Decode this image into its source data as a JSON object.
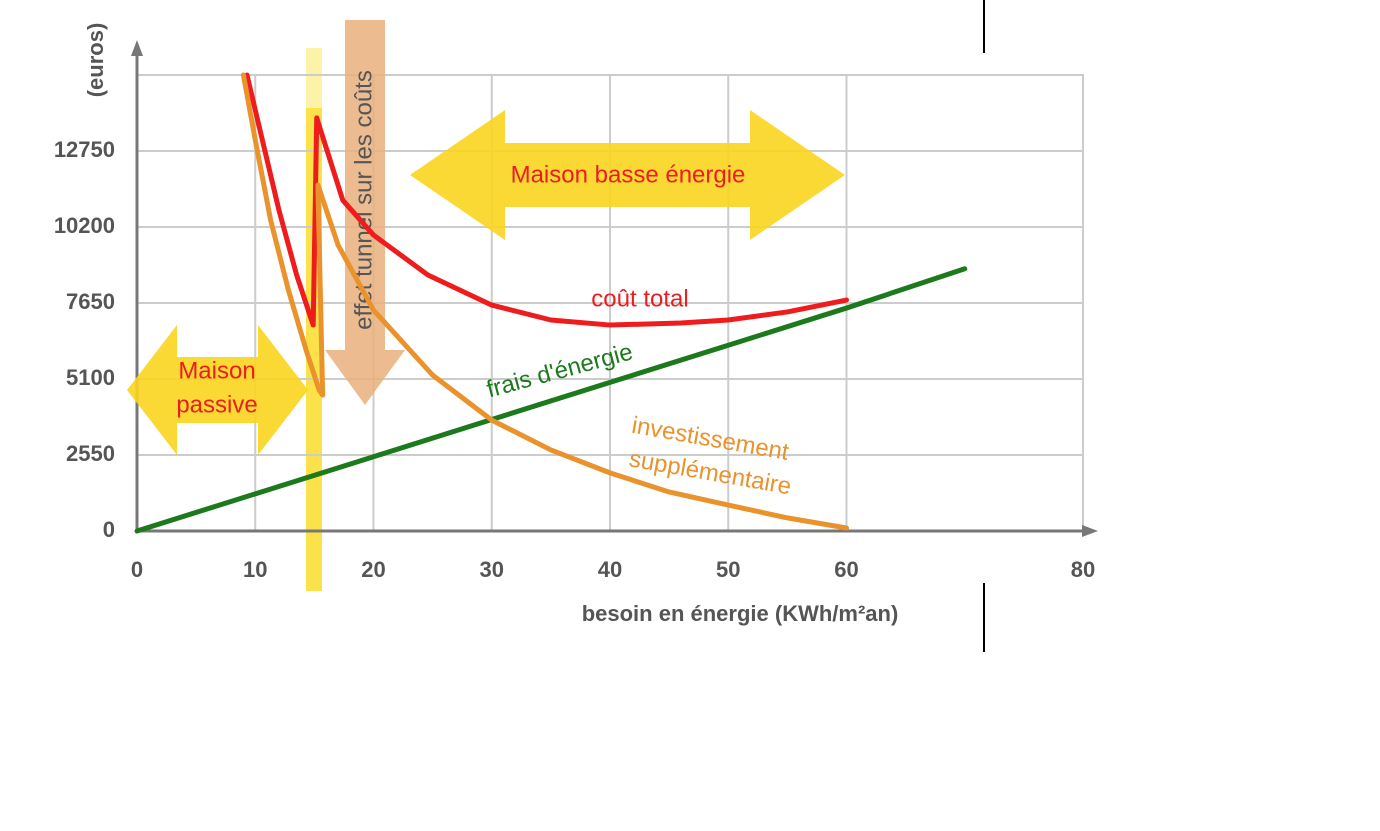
{
  "chart_data": {
    "type": "line",
    "y_label": "(euros)",
    "x_label": "besoin en énergie (KWh/m²an)",
    "xlim": [
      0,
      80
    ],
    "xticks": [
      0,
      10,
      20,
      30,
      40,
      50,
      60,
      80
    ],
    "ylim": [
      0,
      15300
    ],
    "yticks": [
      0,
      2550,
      5100,
      7650,
      10200,
      12750
    ],
    "grid": true,
    "annotations": {
      "passive": [
        "Maison",
        "passive"
      ],
      "low_energy": "Maison basse énergie",
      "tunnel": "effet tunnel sur les coûts"
    },
    "series": [
      {
        "name": "coût total",
        "color": "#ee1c1c",
        "x": [
          9.3,
          12,
          13.5,
          14.9,
          15.2,
          17.4,
          20,
          24.6,
          30,
          35,
          40,
          46,
          50,
          55,
          60
        ],
        "values": [
          15300,
          10770,
          8590,
          6910,
          13860,
          11100,
          9930,
          8590,
          7580,
          7080,
          6910,
          6980,
          7080,
          7350,
          7750
        ]
      },
      {
        "name": "frais d'énergie",
        "color": "#1c7a1c",
        "x": [
          0,
          10,
          20,
          30,
          40,
          50,
          60,
          70
        ],
        "values": [
          0,
          1247,
          2493,
          3740,
          4987,
          6233,
          7480,
          8800
        ]
      },
      {
        "name": [
          "investissement",
          "supplémentaire"
        ],
        "color": "#ea922c",
        "x": [
          9,
          10,
          11.3,
          12.8,
          14.3,
          15.4,
          15.7,
          15.3,
          17,
          20,
          25,
          30,
          35,
          40,
          45,
          50,
          55,
          60
        ],
        "values": [
          15300,
          13120,
          10430,
          8090,
          6070,
          4730,
          4560,
          11610,
          9600,
          7410,
          5230,
          3720,
          2720,
          1950,
          1310,
          870,
          440,
          100
        ]
      }
    ]
  }
}
